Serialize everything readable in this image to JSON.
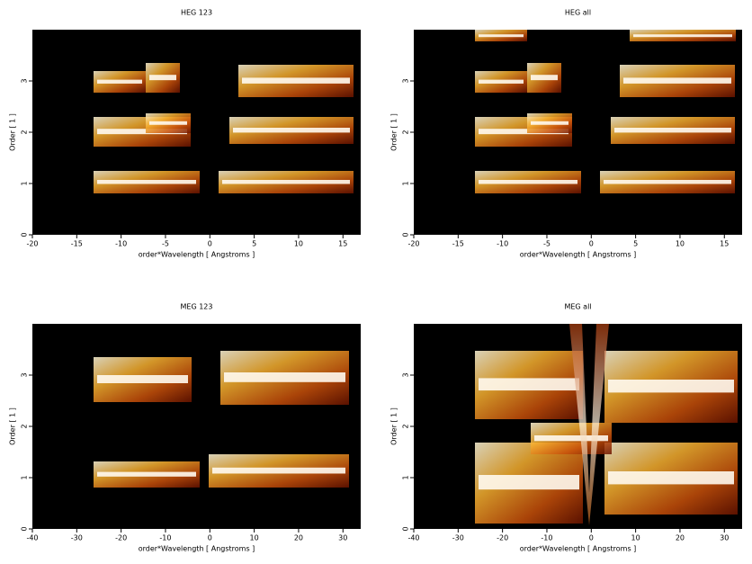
{
  "chart_data": [
    {
      "type": "heatmap",
      "title": "HEG 123",
      "xlabel": "order*Wavelength [ Angstroms ]",
      "ylabel": "Order [ 1 ]",
      "xlim": [
        -20,
        17
      ],
      "ylim": [
        0,
        4
      ],
      "xticks": [
        -20,
        -15,
        -10,
        -5,
        0,
        5,
        10,
        15
      ],
      "yticks": [
        0,
        1,
        2,
        3
      ]
    },
    {
      "type": "heatmap",
      "title": "HEG all",
      "xlabel": "order*Wavelength [ Angstroms ]",
      "ylabel": "Order [ 1 ]",
      "xlim": [
        -20,
        17
      ],
      "ylim": [
        0,
        4
      ],
      "xticks": [
        -20,
        -15,
        -10,
        -5,
        0,
        5,
        10,
        15
      ],
      "yticks": [
        0,
        1,
        2,
        3
      ]
    },
    {
      "type": "heatmap",
      "title": "MEG 123",
      "xlabel": "order*Wavelength [ Angstroms ]",
      "ylabel": "Order [ 1 ]",
      "xlim": [
        -40,
        34
      ],
      "ylim": [
        0,
        4
      ],
      "xticks": [
        -40,
        -30,
        -20,
        -10,
        0,
        10,
        20,
        30
      ],
      "yticks": [
        0,
        1,
        2,
        3
      ]
    },
    {
      "type": "heatmap",
      "title": "MEG all",
      "xlabel": "order*Wavelength [ Angstroms ]",
      "ylabel": "Order [ 1 ]",
      "xlim": [
        -40,
        34
      ],
      "ylim": [
        0,
        4
      ],
      "xticks": [
        -40,
        -30,
        -20,
        -10,
        0,
        10,
        20,
        30
      ],
      "yticks": [
        0,
        1,
        2,
        3
      ]
    }
  ]
}
